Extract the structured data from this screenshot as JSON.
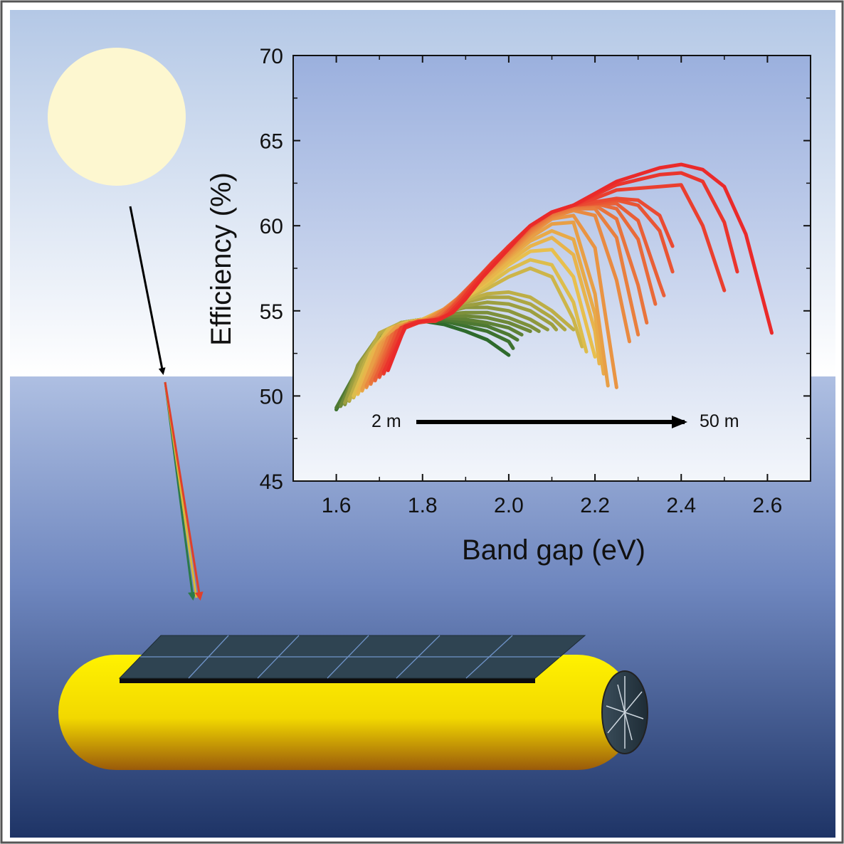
{
  "colors": {
    "sky_top": "#b4c8e6",
    "sky_bottom": "#ffffff",
    "water_top": "#aebfe2",
    "water_bottom": "#1e3466",
    "sun": "#fdf7d0",
    "plot_top": "#9bb0de",
    "plot_bottom": "#f3f6fb",
    "shallow_curve": "#2e6a2c",
    "mid_curve": "#e8c24e",
    "deep_curve": "#ea2a2a",
    "hull": "#f4e400",
    "panel": "#2f4452"
  },
  "icons": [
    "sun-icon",
    "light-ray-arrow-icon",
    "solar-vessel-icon",
    "solar-panel-icon",
    "propeller-icon"
  ],
  "annotation": {
    "start_label": "2 m",
    "end_label": "50 m"
  },
  "chart_data": {
    "type": "line",
    "xlabel": "Band gap (eV)",
    "ylabel": "Efficiency (%)",
    "xlim": [
      1.5,
      2.7
    ],
    "ylim": [
      45,
      70
    ],
    "xticks": [
      "1.6",
      "1.8",
      "2.0",
      "2.2",
      "2.4",
      "2.6"
    ],
    "yticks": [
      "45",
      "50",
      "55",
      "60",
      "65",
      "70"
    ],
    "grid": false,
    "legend": "none",
    "series": [
      {
        "x": [
          1.6,
          1.65,
          1.7,
          1.75,
          1.8,
          1.85,
          1.9,
          1.95,
          2.0
        ],
        "y": [
          49.2,
          51.5,
          53.5,
          54.3,
          54.4,
          54.2,
          53.8,
          53.3,
          52.4
        ]
      },
      {
        "x": [
          1.6,
          1.65,
          1.7,
          1.75,
          1.8,
          1.85,
          1.9,
          1.95,
          2.0,
          2.01
        ],
        "y": [
          49.2,
          51.6,
          53.5,
          54.3,
          54.4,
          54.4,
          54.1,
          53.8,
          53.2,
          52.8
        ]
      },
      {
        "x": [
          1.6,
          1.65,
          1.7,
          1.75,
          1.8,
          1.85,
          1.9,
          1.95,
          2.0,
          2.02
        ],
        "y": [
          49.3,
          51.6,
          53.5,
          54.3,
          54.5,
          54.5,
          54.3,
          54.1,
          53.6,
          53.3
        ]
      },
      {
        "x": [
          1.61,
          1.65,
          1.7,
          1.75,
          1.8,
          1.85,
          1.9,
          1.95,
          2.0,
          2.03
        ],
        "y": [
          49.4,
          51.7,
          53.6,
          54.3,
          54.5,
          54.6,
          54.5,
          54.3,
          54.0,
          53.6
        ]
      },
      {
        "x": [
          1.61,
          1.65,
          1.7,
          1.75,
          1.8,
          1.85,
          1.9,
          1.95,
          2.0,
          2.05
        ],
        "y": [
          49.4,
          51.7,
          53.6,
          54.3,
          54.5,
          54.7,
          54.7,
          54.6,
          54.3,
          53.8
        ]
      },
      {
        "x": [
          1.62,
          1.65,
          1.7,
          1.75,
          1.8,
          1.85,
          1.9,
          1.95,
          2.0,
          2.05,
          2.07
        ],
        "y": [
          49.5,
          51.8,
          53.6,
          54.3,
          54.5,
          54.8,
          54.9,
          54.9,
          54.6,
          54.1,
          53.8
        ]
      },
      {
        "x": [
          1.62,
          1.65,
          1.7,
          1.75,
          1.8,
          1.85,
          1.9,
          1.95,
          2.0,
          2.05,
          2.09
        ],
        "y": [
          49.6,
          51.8,
          53.6,
          54.3,
          54.5,
          54.9,
          55.2,
          55.2,
          55.0,
          54.5,
          53.9
        ]
      },
      {
        "x": [
          1.62,
          1.66,
          1.7,
          1.75,
          1.8,
          1.85,
          1.9,
          1.95,
          2.0,
          2.05,
          2.1,
          2.11
        ],
        "y": [
          49.6,
          52.0,
          53.6,
          54.3,
          54.5,
          54.9,
          55.3,
          55.5,
          55.4,
          55.0,
          54.2,
          53.9
        ]
      },
      {
        "x": [
          1.63,
          1.66,
          1.7,
          1.75,
          1.8,
          1.85,
          1.9,
          1.95,
          2.0,
          2.05,
          2.1,
          2.13
        ],
        "y": [
          49.7,
          52.0,
          53.6,
          54.3,
          54.5,
          55.0,
          55.5,
          55.8,
          55.8,
          55.4,
          54.6,
          53.9
        ]
      },
      {
        "x": [
          1.63,
          1.67,
          1.7,
          1.75,
          1.8,
          1.85,
          1.9,
          1.95,
          2.0,
          2.05,
          2.1,
          2.15
        ],
        "y": [
          49.8,
          52.2,
          53.7,
          54.3,
          54.5,
          55.0,
          55.6,
          56.0,
          56.1,
          55.8,
          55.0,
          53.9
        ]
      },
      {
        "x": [
          1.64,
          1.68,
          1.72,
          1.76,
          1.8,
          1.85,
          1.9,
          1.95,
          2.0,
          2.05,
          2.1,
          2.15,
          2.17
        ],
        "y": [
          49.9,
          52.5,
          53.9,
          54.3,
          54.5,
          55.0,
          55.7,
          56.3,
          57.0,
          57.5,
          57.0,
          54.5,
          52.9
        ]
      },
      {
        "x": [
          1.64,
          1.68,
          1.72,
          1.76,
          1.8,
          1.85,
          1.9,
          1.95,
          2.0,
          2.05,
          2.1,
          2.15,
          2.18
        ],
        "y": [
          50.0,
          52.5,
          53.9,
          54.3,
          54.5,
          55.0,
          55.8,
          56.5,
          57.4,
          58.0,
          57.7,
          55.5,
          52.6
        ]
      },
      {
        "x": [
          1.65,
          1.69,
          1.73,
          1.77,
          1.8,
          1.85,
          1.9,
          1.95,
          2.0,
          2.05,
          2.1,
          2.15,
          2.2
        ],
        "y": [
          50.1,
          52.7,
          54.0,
          54.3,
          54.5,
          55.0,
          55.8,
          56.7,
          57.7,
          58.5,
          58.6,
          57.0,
          52.3
        ]
      },
      {
        "x": [
          1.65,
          1.69,
          1.73,
          1.77,
          1.8,
          1.85,
          1.9,
          1.95,
          2.0,
          2.05,
          2.1,
          2.15,
          2.2,
          2.21
        ],
        "y": [
          50.2,
          52.8,
          54.0,
          54.3,
          54.5,
          55.1,
          55.9,
          56.8,
          57.9,
          58.8,
          59.3,
          58.3,
          53.8,
          51.9
        ]
      },
      {
        "x": [
          1.66,
          1.7,
          1.74,
          1.78,
          1.81,
          1.85,
          1.9,
          1.95,
          2.0,
          2.05,
          2.1,
          2.15,
          2.2,
          2.22
        ],
        "y": [
          50.3,
          52.9,
          54.0,
          54.3,
          54.5,
          55.1,
          56.0,
          57.0,
          58.1,
          59.1,
          59.7,
          59.2,
          54.8,
          51.3
        ]
      },
      {
        "x": [
          1.66,
          1.7,
          1.74,
          1.78,
          1.81,
          1.85,
          1.9,
          1.95,
          2.0,
          2.05,
          2.1,
          2.15,
          2.2,
          2.23
        ],
        "y": [
          50.4,
          53.0,
          54.1,
          54.3,
          54.5,
          55.1,
          56.0,
          57.1,
          58.2,
          59.3,
          60.1,
          60.2,
          56.0,
          50.6
        ]
      },
      {
        "x": [
          1.67,
          1.71,
          1.75,
          1.78,
          1.81,
          1.85,
          1.9,
          1.95,
          2.0,
          2.05,
          2.1,
          2.15,
          2.2,
          2.25
        ],
        "y": [
          50.5,
          53.1,
          54.1,
          54.3,
          54.5,
          55.1,
          56.1,
          57.2,
          58.3,
          59.5,
          60.4,
          60.6,
          58.7,
          50.5
        ]
      },
      {
        "x": [
          1.67,
          1.72,
          1.76,
          1.79,
          1.82,
          1.85,
          1.9,
          1.95,
          2.0,
          2.05,
          2.1,
          2.15,
          2.2,
          2.25,
          2.28
        ],
        "y": [
          50.6,
          53.3,
          54.2,
          54.4,
          54.5,
          55.1,
          56.1,
          57.3,
          58.4,
          59.6,
          60.5,
          60.9,
          60.6,
          56.8,
          53.2
        ]
      },
      {
        "x": [
          1.68,
          1.72,
          1.76,
          1.8,
          1.83,
          1.86,
          1.9,
          1.95,
          2.0,
          2.05,
          2.1,
          2.15,
          2.2,
          2.25,
          2.3
        ],
        "y": [
          50.7,
          53.4,
          54.2,
          54.4,
          54.6,
          55.2,
          56.2,
          57.3,
          58.5,
          59.7,
          60.6,
          61.0,
          61.0,
          59.3,
          53.6
        ]
      },
      {
        "x": [
          1.68,
          1.73,
          1.77,
          1.8,
          1.83,
          1.86,
          1.9,
          1.95,
          2.0,
          2.05,
          2.1,
          2.15,
          2.2,
          2.25,
          2.3,
          2.32
        ],
        "y": [
          50.8,
          53.5,
          54.2,
          54.4,
          54.6,
          55.2,
          56.2,
          57.4,
          58.6,
          59.8,
          60.7,
          61.1,
          61.2,
          60.4,
          56.5,
          54.3
        ]
      },
      {
        "x": [
          1.69,
          1.73,
          1.77,
          1.81,
          1.84,
          1.87,
          1.9,
          1.95,
          2.0,
          2.05,
          2.1,
          2.15,
          2.2,
          2.25,
          2.3,
          2.34
        ],
        "y": [
          50.9,
          53.6,
          54.3,
          54.4,
          54.6,
          55.3,
          56.2,
          57.5,
          58.6,
          59.9,
          60.8,
          61.2,
          61.3,
          61.0,
          59.2,
          55.4
        ]
      },
      {
        "x": [
          1.69,
          1.74,
          1.78,
          1.81,
          1.84,
          1.87,
          1.9,
          1.95,
          2.0,
          2.05,
          2.1,
          2.15,
          2.2,
          2.25,
          2.3,
          2.35,
          2.36
        ],
        "y": [
          51.0,
          53.7,
          54.3,
          54.4,
          54.6,
          55.3,
          56.2,
          57.5,
          58.7,
          59.9,
          60.8,
          61.2,
          61.3,
          61.3,
          60.3,
          56.6,
          55.9
        ]
      },
      {
        "x": [
          1.7,
          1.74,
          1.78,
          1.82,
          1.85,
          1.88,
          1.92,
          1.96,
          2.0,
          2.05,
          2.1,
          2.15,
          2.2,
          2.25,
          2.3,
          2.35,
          2.38
        ],
        "y": [
          51.1,
          53.8,
          54.3,
          54.4,
          54.7,
          55.4,
          56.6,
          57.7,
          58.7,
          60.0,
          60.8,
          61.2,
          61.3,
          61.5,
          61.2,
          59.7,
          57.3
        ]
      },
      {
        "x": [
          1.7,
          1.75,
          1.79,
          1.82,
          1.85,
          1.88,
          1.92,
          1.96,
          2.0,
          2.05,
          2.1,
          2.15,
          2.2,
          2.25,
          2.3,
          2.35,
          2.38
        ],
        "y": [
          51.2,
          53.9,
          54.3,
          54.4,
          54.7,
          55.5,
          56.7,
          57.8,
          58.8,
          60.0,
          60.8,
          61.2,
          61.4,
          61.6,
          61.5,
          60.6,
          58.8
        ]
      },
      {
        "x": [
          1.71,
          1.75,
          1.79,
          1.83,
          1.86,
          1.89,
          1.93,
          1.97,
          2.0,
          2.05,
          2.1,
          2.15,
          2.2,
          2.25,
          2.3,
          2.35,
          2.4,
          2.45,
          2.5
        ],
        "y": [
          51.3,
          54.0,
          54.4,
          54.4,
          54.8,
          55.6,
          56.9,
          58.0,
          58.8,
          60.0,
          60.8,
          61.2,
          61.6,
          62.1,
          62.2,
          62.3,
          62.4,
          60.0,
          56.2
        ]
      },
      {
        "x": [
          1.71,
          1.76,
          1.8,
          1.83,
          1.86,
          1.89,
          1.93,
          1.97,
          2.0,
          2.05,
          2.1,
          2.15,
          2.2,
          2.25,
          2.3,
          2.35,
          2.4,
          2.45,
          2.5,
          2.53
        ],
        "y": [
          51.4,
          54.0,
          54.4,
          54.4,
          54.8,
          55.6,
          56.9,
          58.0,
          58.8,
          60.0,
          60.8,
          61.2,
          61.8,
          62.4,
          62.7,
          63.0,
          63.1,
          62.6,
          60.2,
          57.3
        ]
      },
      {
        "x": [
          1.72,
          1.76,
          1.8,
          1.84,
          1.87,
          1.9,
          1.94,
          1.98,
          2.02,
          2.05,
          2.1,
          2.15,
          2.2,
          2.25,
          2.3,
          2.35,
          2.4,
          2.45,
          2.5,
          2.55,
          2.61
        ],
        "y": [
          51.5,
          54.1,
          54.4,
          54.5,
          54.9,
          55.7,
          57.0,
          58.1,
          59.2,
          60.0,
          60.8,
          61.2,
          61.9,
          62.6,
          63.0,
          63.4,
          63.6,
          63.3,
          62.3,
          59.5,
          53.7
        ]
      }
    ]
  }
}
